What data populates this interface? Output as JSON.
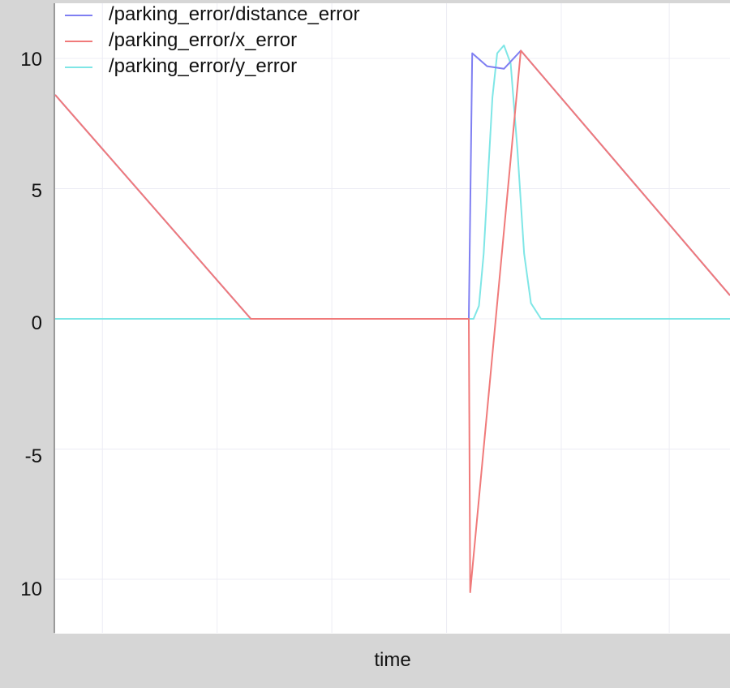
{
  "chart_data": {
    "type": "line",
    "xlabel": "time",
    "ylabel": "",
    "ylim": [
      -12,
      12
    ],
    "y_ticks": [
      10,
      5,
      0,
      -5,
      10
    ],
    "legend_placement": "top-left",
    "grid": true,
    "series": [
      {
        "name": "/parking_error/distance_error",
        "color": "#7f7ff2",
        "x": [
          0,
          0.29,
          0.613,
          0.618,
          0.64,
          0.665,
          0.69,
          1.0
        ],
        "y": [
          8.6,
          0.0,
          0.0,
          10.2,
          9.7,
          9.6,
          10.3,
          0.9
        ]
      },
      {
        "name": "/parking_error/x_error",
        "color": "#f07a7a",
        "x": [
          0,
          0.29,
          0.613,
          0.615,
          0.69,
          1.0
        ],
        "y": [
          8.6,
          0.0,
          0.0,
          -10.5,
          10.3,
          0.9
        ]
      },
      {
        "name": "/parking_error/y_error",
        "color": "#7fe6e6",
        "x": [
          0,
          0.62,
          0.628,
          0.635,
          0.648,
          0.655,
          0.665,
          0.675,
          0.685,
          0.695,
          0.705,
          0.72,
          1.0
        ],
        "y": [
          0,
          0,
          0.5,
          2.5,
          8.5,
          10.2,
          10.5,
          9.8,
          6.5,
          2.5,
          0.6,
          0,
          0
        ]
      }
    ]
  }
}
